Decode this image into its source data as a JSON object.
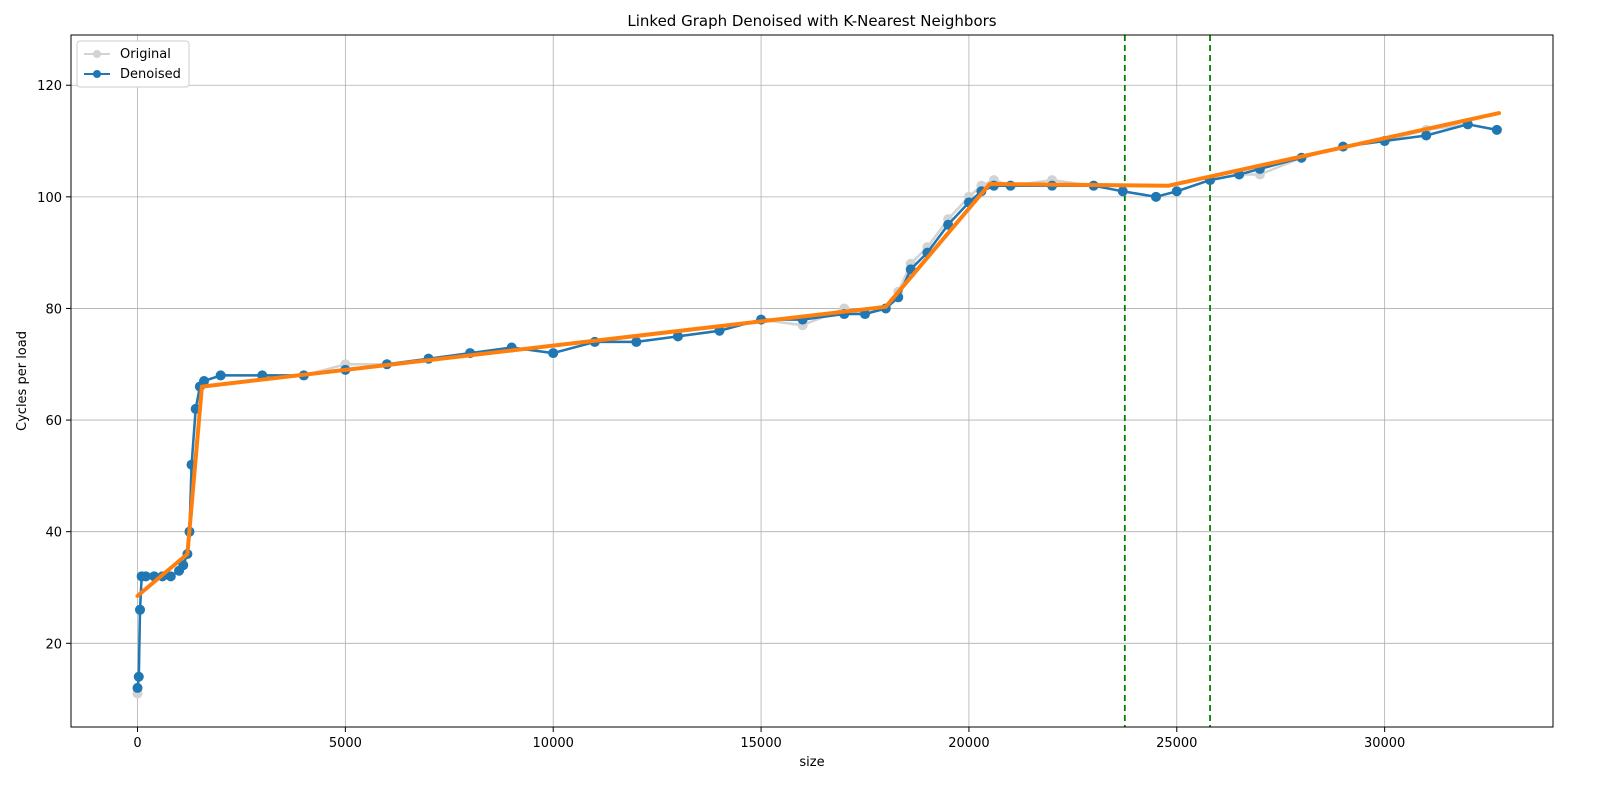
{
  "chart_data": {
    "type": "line",
    "title": "Linked Graph Denoised with K-Nearest Neighbors",
    "xlabel": "size",
    "ylabel": "Cycles per load",
    "xlim": [
      -1600,
      34050
    ],
    "ylim": [
      5,
      129
    ],
    "xticks": [
      0,
      5000,
      10000,
      15000,
      20000,
      25000,
      30000
    ],
    "yticks": [
      20,
      40,
      60,
      80,
      100,
      120
    ],
    "grid": true,
    "legend": {
      "position": "top-left",
      "entries": [
        "Original",
        "Denoised"
      ]
    },
    "colors": {
      "original": "#d3d3d3",
      "denoised": "#1f77b4",
      "trend": "#ff7f0e",
      "breakpoint": "#008000"
    },
    "series": [
      {
        "name": "Original",
        "style": "line-with-markers",
        "color": "#d3d3d3",
        "x": [
          0,
          30,
          60,
          100,
          200,
          400,
          600,
          800,
          1000,
          1100,
          1200,
          1250,
          1300,
          1400,
          1500,
          1600,
          2000,
          3000,
          4000,
          5000,
          6000,
          7000,
          8000,
          9000,
          10000,
          11000,
          12000,
          13000,
          14000,
          15000,
          16000,
          17000,
          17500,
          18000,
          18300,
          18600,
          19000,
          19500,
          20000,
          20300,
          20600,
          21000,
          22000,
          23000,
          23700,
          24500,
          25000,
          25800,
          26500,
          27000,
          28000,
          29000,
          30000,
          31000,
          32000,
          32700
        ],
        "y": [
          11,
          14,
          26,
          32,
          32,
          32,
          32,
          32,
          33,
          34,
          36,
          40,
          52,
          62,
          66,
          67,
          68,
          68,
          68,
          70,
          70,
          71,
          72,
          73,
          72,
          74,
          74,
          75,
          76,
          78,
          77,
          80,
          79,
          80,
          83,
          88,
          91,
          96,
          100,
          102,
          103,
          102,
          103,
          102,
          101,
          100,
          101,
          103,
          104,
          104,
          107,
          109,
          110,
          112,
          113,
          112
        ]
      },
      {
        "name": "Denoised",
        "style": "line-with-markers",
        "color": "#1f77b4",
        "x": [
          0,
          30,
          60,
          100,
          200,
          400,
          600,
          800,
          1000,
          1100,
          1200,
          1250,
          1300,
          1400,
          1500,
          1600,
          2000,
          3000,
          4000,
          5000,
          6000,
          7000,
          8000,
          9000,
          10000,
          11000,
          12000,
          13000,
          14000,
          15000,
          16000,
          17000,
          17500,
          18000,
          18300,
          18600,
          19000,
          19500,
          20000,
          20300,
          20600,
          21000,
          22000,
          23000,
          23700,
          24500,
          25000,
          25800,
          26500,
          27000,
          28000,
          29000,
          30000,
          31000,
          32000,
          32700
        ],
        "y": [
          12,
          14,
          26,
          32,
          32,
          32,
          32,
          32,
          33,
          34,
          36,
          40,
          52,
          62,
          66,
          67,
          68,
          68,
          68,
          69,
          70,
          71,
          72,
          73,
          72,
          74,
          74,
          75,
          76,
          78,
          78,
          79,
          79,
          80,
          82,
          87,
          90,
          95,
          99,
          101,
          102,
          102,
          102,
          102,
          101,
          100,
          101,
          103,
          104,
          105,
          107,
          109,
          110,
          111,
          113,
          112
        ]
      },
      {
        "style": "line",
        "color": "#ff7f0e",
        "x": [
          0,
          1200,
          1550,
          18000,
          20500,
          24800,
          32750
        ],
        "y": [
          28.5,
          36,
          66,
          80.3,
          102.3,
          102,
          115
        ]
      }
    ],
    "breakpoints": [
      23750,
      25800
    ]
  }
}
